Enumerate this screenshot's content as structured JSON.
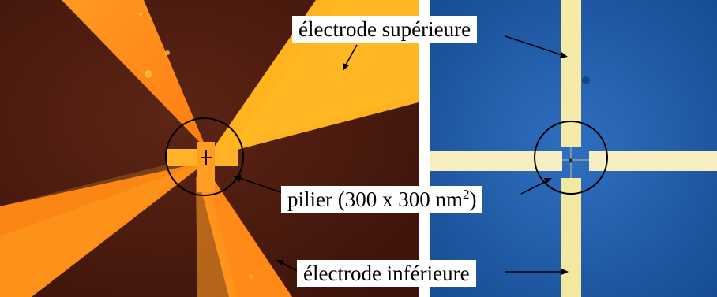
{
  "labels": {
    "top_electrode": "électrode supérieure",
    "pillar_prefix": "pilier (300 x 300 nm",
    "pillar_exponent": "2",
    "pillar_suffix": ")",
    "bottom_electrode": "électrode inférieure"
  },
  "colors": {
    "left_background": "#4a1a10",
    "left_electrode_orange": "#ff8c1a",
    "left_electrode_light": "#ffb020",
    "right_background": "#1a55a0",
    "right_electrode": "#f4e8a0",
    "annotation": "#000000"
  }
}
